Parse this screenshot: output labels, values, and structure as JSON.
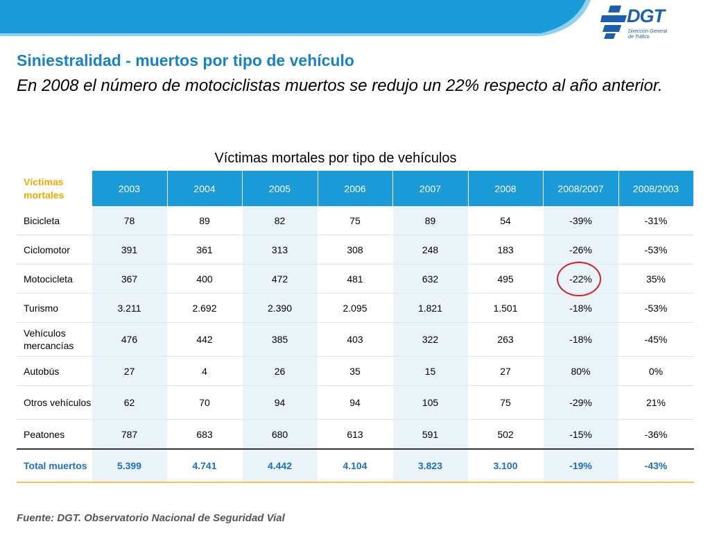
{
  "brand": {
    "logo_text": "DGT",
    "logo_sub_line1": "Dirección General",
    "logo_sub_line2": "de Tráfico",
    "accent_color": "#1a9ad6",
    "title_color": "#1782c5",
    "highlight_color": "#d0202a"
  },
  "slide": {
    "title": "Siniestralidad - muertos por tipo de vehículo",
    "subtitle": "En 2008 el número de motociclistas muertos se redujo un 22% respecto al año anterior.",
    "table_caption": "Víctimas mortales por tipo de vehículos",
    "footer": "Fuente: DGT. Observatorio Nacional de Seguridad Vial"
  },
  "table": {
    "corner_label": "Víctimas mortales",
    "headers": [
      "2003",
      "2004",
      "2005",
      "2006",
      "2007",
      "2008",
      "2008/2007",
      "2008/2003"
    ],
    "rows": [
      {
        "label": "Bicicleta",
        "values": [
          "78",
          "89",
          "82",
          "75",
          "89",
          "54",
          "-39%",
          "-31%"
        ]
      },
      {
        "label": "Ciclomotor",
        "values": [
          "391",
          "361",
          "313",
          "308",
          "248",
          "183",
          "-26%",
          "-53%"
        ]
      },
      {
        "label": "Motocicleta",
        "values": [
          "367",
          "400",
          "472",
          "481",
          "632",
          "495",
          "-22%",
          "35%"
        ]
      },
      {
        "label": "Turismo",
        "values": [
          "3.211",
          "2.692",
          "2.390",
          "2.095",
          "1.821",
          "1.501",
          "-18%",
          "-53%"
        ]
      },
      {
        "label": "Vehículos mercancías",
        "values": [
          "476",
          "442",
          "385",
          "403",
          "322",
          "263",
          "-18%",
          "-45%"
        ]
      },
      {
        "label": "Autobús",
        "values": [
          "27",
          "4",
          "26",
          "35",
          "15",
          "27",
          "80%",
          "0%"
        ]
      },
      {
        "label": "Otros vehículos",
        "values": [
          "62",
          "70",
          "94",
          "94",
          "105",
          "75",
          "-29%",
          "21%"
        ]
      },
      {
        "label": "Peatones",
        "values": [
          "787",
          "683",
          "680",
          "613",
          "591",
          "502",
          "-15%",
          "-36%"
        ]
      }
    ],
    "total": {
      "label": "Total muertos",
      "values": [
        "5.399",
        "4.741",
        "4.442",
        "4.104",
        "3.823",
        "3.100",
        "-19%",
        "-43%"
      ]
    }
  }
}
